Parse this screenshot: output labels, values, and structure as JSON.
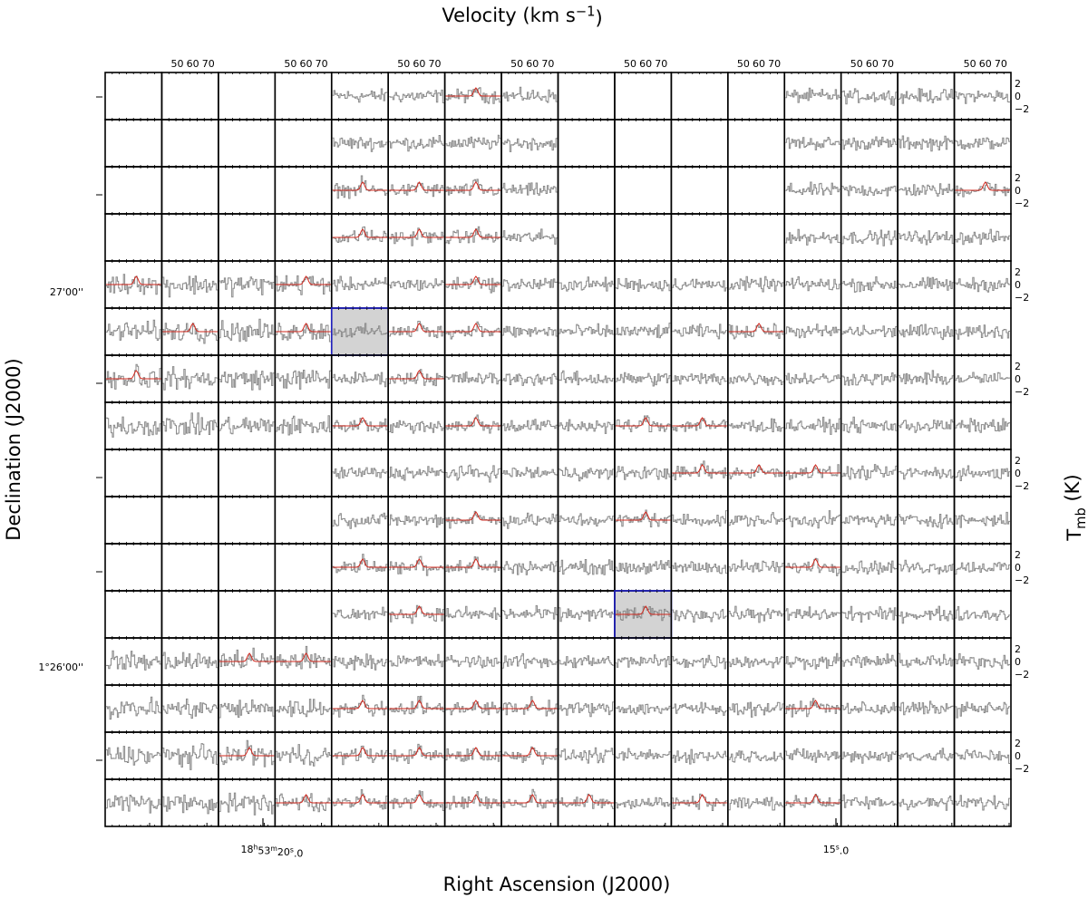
{
  "figure": {
    "top_title": "Velocity (km s−1)",
    "x_title": "Right Ascension (J2000)",
    "y_title": "Declination (J2000)",
    "y2_title": "Tmb (K)",
    "velocity_axis": {
      "xlim": [
        40,
        76.5
      ],
      "xticks": [
        50,
        60,
        70
      ]
    },
    "tmb_axis": {
      "ylim": [
        -3.7,
        3.7
      ],
      "yticks": [
        2,
        0,
        {
          "value": -2,
          "label": "−2"
        }
      ]
    },
    "ra_ticks": [
      "18h53m20s.0",
      "15s.0"
    ],
    "dec_ticks": [
      "27'00''",
      "1°26'00''"
    ]
  }
}
